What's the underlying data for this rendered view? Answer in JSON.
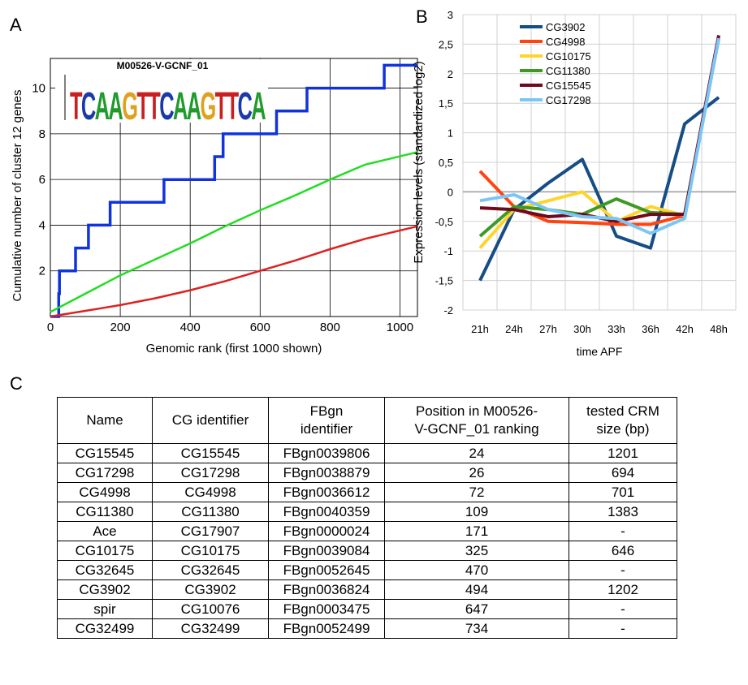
{
  "panels": {
    "a": "A",
    "b": "B",
    "c": "C"
  },
  "chart_data": [
    {
      "type": "line",
      "xlabel": "Genomic rank (first 1000 shown)",
      "ylabel": "Cumulative number of cluster 12 genes",
      "xlim": [
        0,
        1050
      ],
      "ylim": [
        0,
        11.3
      ],
      "xticks": [
        0,
        200,
        400,
        600,
        800,
        1000
      ],
      "yticks": [
        2,
        4,
        6,
        8,
        10
      ],
      "grid": true,
      "motif_logo": {
        "title": "M00526-V-GCNF_01",
        "sequence": "TCAAGTTCAAGTTCA"
      },
      "series": [
        {
          "color": "#1133dd",
          "step": true,
          "points": [
            [
              0,
              0
            ],
            [
              24,
              0
            ],
            [
              24,
              1
            ],
            [
              26,
              1
            ],
            [
              26,
              2
            ],
            [
              72,
              2
            ],
            [
              72,
              3
            ],
            [
              109,
              3
            ],
            [
              109,
              4
            ],
            [
              171,
              4
            ],
            [
              171,
              5
            ],
            [
              325,
              5
            ],
            [
              325,
              6
            ],
            [
              470,
              6
            ],
            [
              470,
              7
            ],
            [
              494,
              7
            ],
            [
              494,
              8
            ],
            [
              647,
              8
            ],
            [
              647,
              9
            ],
            [
              734,
              9
            ],
            [
              734,
              10
            ],
            [
              955,
              10
            ],
            [
              955,
              11
            ],
            [
              1050,
              11
            ]
          ]
        },
        {
          "color": "#22dd22",
          "points": [
            [
              0,
              0.2
            ],
            [
              100,
              1.0
            ],
            [
              200,
              1.8
            ],
            [
              300,
              2.5
            ],
            [
              400,
              3.2
            ],
            [
              500,
              3.95
            ],
            [
              600,
              4.65
            ],
            [
              700,
              5.3
            ],
            [
              800,
              6.0
            ],
            [
              900,
              6.65
            ],
            [
              1050,
              7.2
            ]
          ]
        },
        {
          "color": "#dd2222",
          "points": [
            [
              0,
              0
            ],
            [
              100,
              0.25
            ],
            [
              200,
              0.5
            ],
            [
              300,
              0.8
            ],
            [
              400,
              1.15
            ],
            [
              500,
              1.55
            ],
            [
              600,
              2.0
            ],
            [
              700,
              2.45
            ],
            [
              800,
              2.95
            ],
            [
              900,
              3.4
            ],
            [
              1050,
              3.95
            ]
          ]
        }
      ]
    },
    {
      "type": "line",
      "xlabel": "time APF",
      "ylabel": "Expression levels (standardized log2)",
      "categories": [
        "21h",
        "24h",
        "27h",
        "30h",
        "33h",
        "36h",
        "42h",
        "48h"
      ],
      "ylim": [
        -2,
        3
      ],
      "yticks": [
        "-2",
        "-1,5",
        "-1",
        "-0,5",
        "0",
        "0,5",
        "1",
        "1,5",
        "2",
        "2,5",
        "3"
      ],
      "grid": true,
      "legend": "top-left",
      "series": [
        {
          "name": "CG3902",
          "color": "#154d85",
          "values": [
            -1.5,
            -0.3,
            0.15,
            0.55,
            -0.75,
            -0.95,
            1.15,
            1.6
          ]
        },
        {
          "name": "CG4998",
          "color": "#ff4411",
          "values": [
            0.35,
            -0.25,
            -0.5,
            -0.52,
            -0.55,
            -0.55,
            -0.4,
            2.6
          ]
        },
        {
          "name": "CG10175",
          "color": "#ffd42a",
          "values": [
            -0.95,
            -0.3,
            -0.15,
            0.0,
            -0.5,
            -0.25,
            -0.4,
            2.6
          ]
        },
        {
          "name": "CG11380",
          "color": "#3f9a25",
          "values": [
            -0.75,
            -0.25,
            -0.3,
            -0.38,
            -0.12,
            -0.35,
            -0.38,
            2.6
          ]
        },
        {
          "name": "CG15545",
          "color": "#6e0a1e",
          "values": [
            -0.27,
            -0.3,
            -0.42,
            -0.38,
            -0.5,
            -0.38,
            -0.38,
            2.65
          ]
        },
        {
          "name": "CG17298",
          "color": "#7cc6f5",
          "values": [
            -0.15,
            -0.05,
            -0.3,
            -0.42,
            -0.45,
            -0.7,
            -0.45,
            2.6
          ]
        }
      ]
    },
    {
      "type": "table",
      "columns": [
        [
          "Name"
        ],
        [
          "CG identifier"
        ],
        [
          "FBgn",
          "identifier"
        ],
        [
          "Position in M00526-",
          "V-GCNF_01 ranking"
        ],
        [
          "tested CRM",
          "size (bp)"
        ]
      ],
      "rows": [
        [
          "CG15545",
          "CG15545",
          "FBgn0039806",
          "24",
          "1201"
        ],
        [
          "CG17298",
          "CG17298",
          "FBgn0038879",
          "26",
          "694"
        ],
        [
          "CG4998",
          "CG4998",
          "FBgn0036612",
          "72",
          "701"
        ],
        [
          "CG11380",
          "CG11380",
          "FBgn0040359",
          "109",
          "1383"
        ],
        [
          "Ace",
          "CG17907",
          "FBgn0000024",
          "171",
          "-"
        ],
        [
          "CG10175",
          "CG10175",
          "FBgn0039084",
          "325",
          "646"
        ],
        [
          "CG32645",
          "CG32645",
          "FBgn0052645",
          "470",
          "-"
        ],
        [
          "CG3902",
          "CG3902",
          "FBgn0036824",
          "494",
          "1202"
        ],
        [
          "spir",
          "CG10076",
          "FBgn0003475",
          "647",
          "-"
        ],
        [
          "CG32499",
          "CG32499",
          "FBgn0052499",
          "734",
          "-"
        ]
      ]
    }
  ]
}
